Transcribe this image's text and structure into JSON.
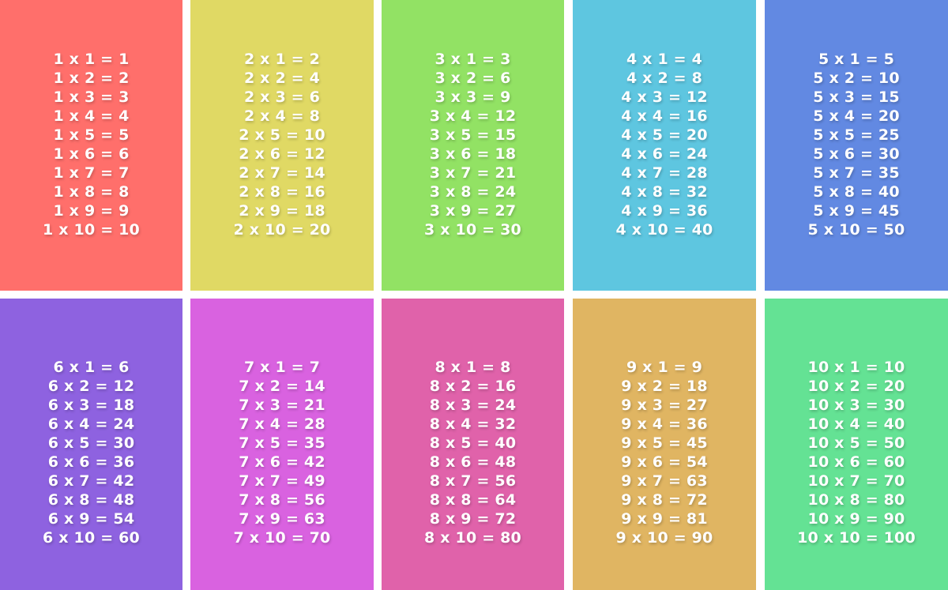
{
  "tables": [
    {
      "color": "#ff6f6b",
      "lines": [
        "1 x 1 = 1",
        "1 x 2 = 2",
        "1 x 3 = 3",
        "1 x 4 = 4",
        "1 x 5 = 5",
        "1 x 6 = 6",
        "1 x 7 = 7",
        "1 x 8 = 8",
        "1 x 9 = 9",
        "1 x 10 = 10"
      ]
    },
    {
      "color": "#e0d964",
      "lines": [
        "2 x 1 = 2",
        "2 x 2 = 4",
        "2 x 3 = 6",
        "2 x 4 = 8",
        "2 x 5 = 10",
        "2 x 6 = 12",
        "2 x 7 = 14",
        "2 x 8 = 16",
        "2 x 9 = 18",
        "2 x 10 = 20"
      ]
    },
    {
      "color": "#92e264",
      "lines": [
        "3 x 1 = 3",
        "3 x 2 = 6",
        "3 x 3 = 9",
        "3 x 4 = 12",
        "3 x 5 = 15",
        "3 x 6 = 18",
        "3 x 7 = 21",
        "3 x 8 = 24",
        "3 x 9 = 27",
        "3 x 10 = 30"
      ]
    },
    {
      "color": "#5ec6e0",
      "lines": [
        "4 x 1 = 4",
        "4 x 2 = 8",
        "4 x 3 = 12",
        "4 x 4 = 16",
        "4 x 5 = 20",
        "4 x 6 = 24",
        "4 x 7 = 28",
        "4 x 8 = 32",
        "4 x 9 = 36",
        "4 x 10 = 40"
      ]
    },
    {
      "color": "#6289e2",
      "lines": [
        "5 x 1 = 5",
        "5 x 2 = 10",
        "5 x 3 = 15",
        "5 x 4 = 20",
        "5 x 5 = 25",
        "5 x 6 = 30",
        "5 x 7 = 35",
        "5 x 8 = 40",
        "5 x 9 = 45",
        "5 x 10 = 50"
      ]
    },
    {
      "color": "#8e62e0",
      "lines": [
        "6 x 1 = 6",
        "6 x 2 = 12",
        "6 x 3 = 18",
        "6 x 4 = 24",
        "6 x 5 = 30",
        "6 x 6 = 36",
        "6 x 7 = 42",
        "6 x 8 = 48",
        "6 x 9 = 54",
        "6 x 10 = 60"
      ]
    },
    {
      "color": "#d962e0",
      "lines": [
        "7 x 1 = 7",
        "7 x 2 = 14",
        "7 x 3 = 21",
        "7 x 4 = 28",
        "7 x 5 = 35",
        "7 x 6 = 42",
        "7 x 7 = 49",
        "7 x 8 = 56",
        "7 x 9 = 63",
        "7 x 10 = 70"
      ]
    },
    {
      "color": "#e062aa",
      "lines": [
        "8 x 1 = 8",
        "8 x 2 = 16",
        "8 x 3 = 24",
        "8 x 4 = 32",
        "8 x 5 = 40",
        "8 x 6 = 48",
        "8 x 7 = 56",
        "8 x 8 = 64",
        "8 x 9 = 72",
        "8 x 10 = 80"
      ]
    },
    {
      "color": "#e0b562",
      "lines": [
        "9 x 1 = 9",
        "9 x 2 = 18",
        "9 x 3 = 27",
        "9 x 4 = 36",
        "9 x 5 = 45",
        "9 x 6 = 54",
        "9 x 7 = 63",
        "9 x 8 = 72",
        "9 x 9 = 81",
        "9 x 10 = 90"
      ]
    },
    {
      "color": "#64e294",
      "lines": [
        "10 x 1 = 10",
        "10 x 2 = 20",
        "10 x 3 = 30",
        "10 x 4 = 40",
        "10 x 5 = 50",
        "10 x 6 = 60",
        "10 x 7 = 70",
        "10 x 8 = 80",
        "10 x 9 = 90",
        "10 x 10 = 100"
      ]
    }
  ]
}
